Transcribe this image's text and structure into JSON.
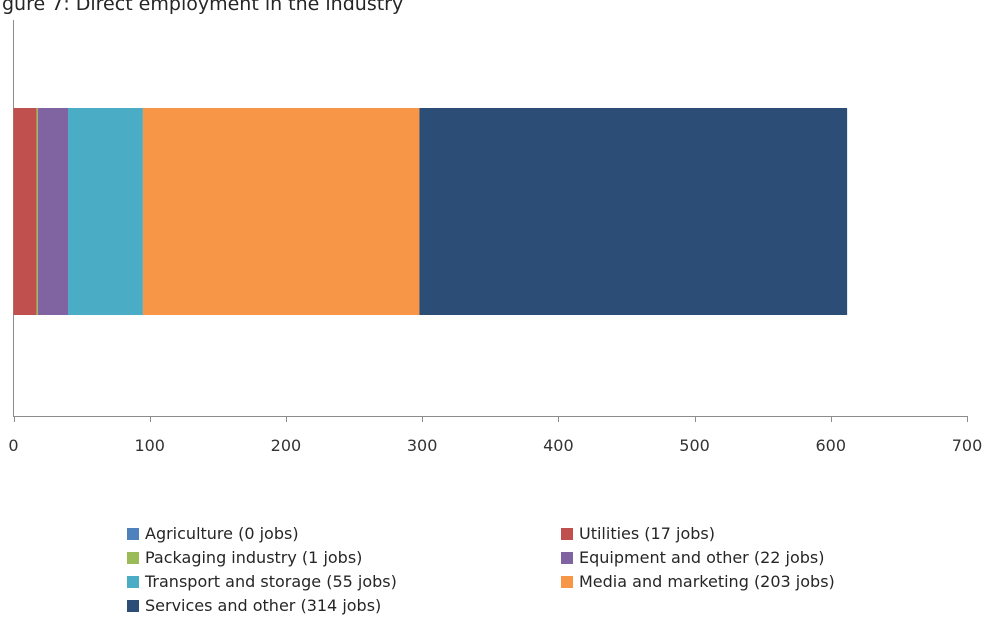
{
  "chart_data": {
    "type": "bar",
    "orientation": "horizontal",
    "stacked": true,
    "title": "gure 7: Direct employment in the industry",
    "xlim": [
      0,
      700
    ],
    "x_ticks": [
      0,
      100,
      200,
      300,
      400,
      500,
      600,
      700
    ],
    "x_tick_labels": [
      "0",
      "100",
      "200",
      "300",
      "400",
      "500",
      "600",
      "700"
    ],
    "legend_position": "bottom",
    "gridlines": false,
    "series": [
      {
        "name": "Agriculture (0 jobs)",
        "value": 0,
        "color": "#4f81bd"
      },
      {
        "name": "Utilities (17 jobs)",
        "value": 17,
        "color": "#c0504d"
      },
      {
        "name": "Packaging industry (1 jobs)",
        "value": 1,
        "color": "#9bbb59"
      },
      {
        "name": "Equipment and other (22 jobs)",
        "value": 22,
        "color": "#8064a2"
      },
      {
        "name": "Transport and storage (55 jobs)",
        "value": 55,
        "color": "#4bacc6"
      },
      {
        "name": "Media and marketing (203 jobs)",
        "value": 203,
        "color": "#f79646"
      },
      {
        "name": "Services and other (314 jobs)",
        "value": 314,
        "color": "#2c4d75"
      }
    ]
  }
}
